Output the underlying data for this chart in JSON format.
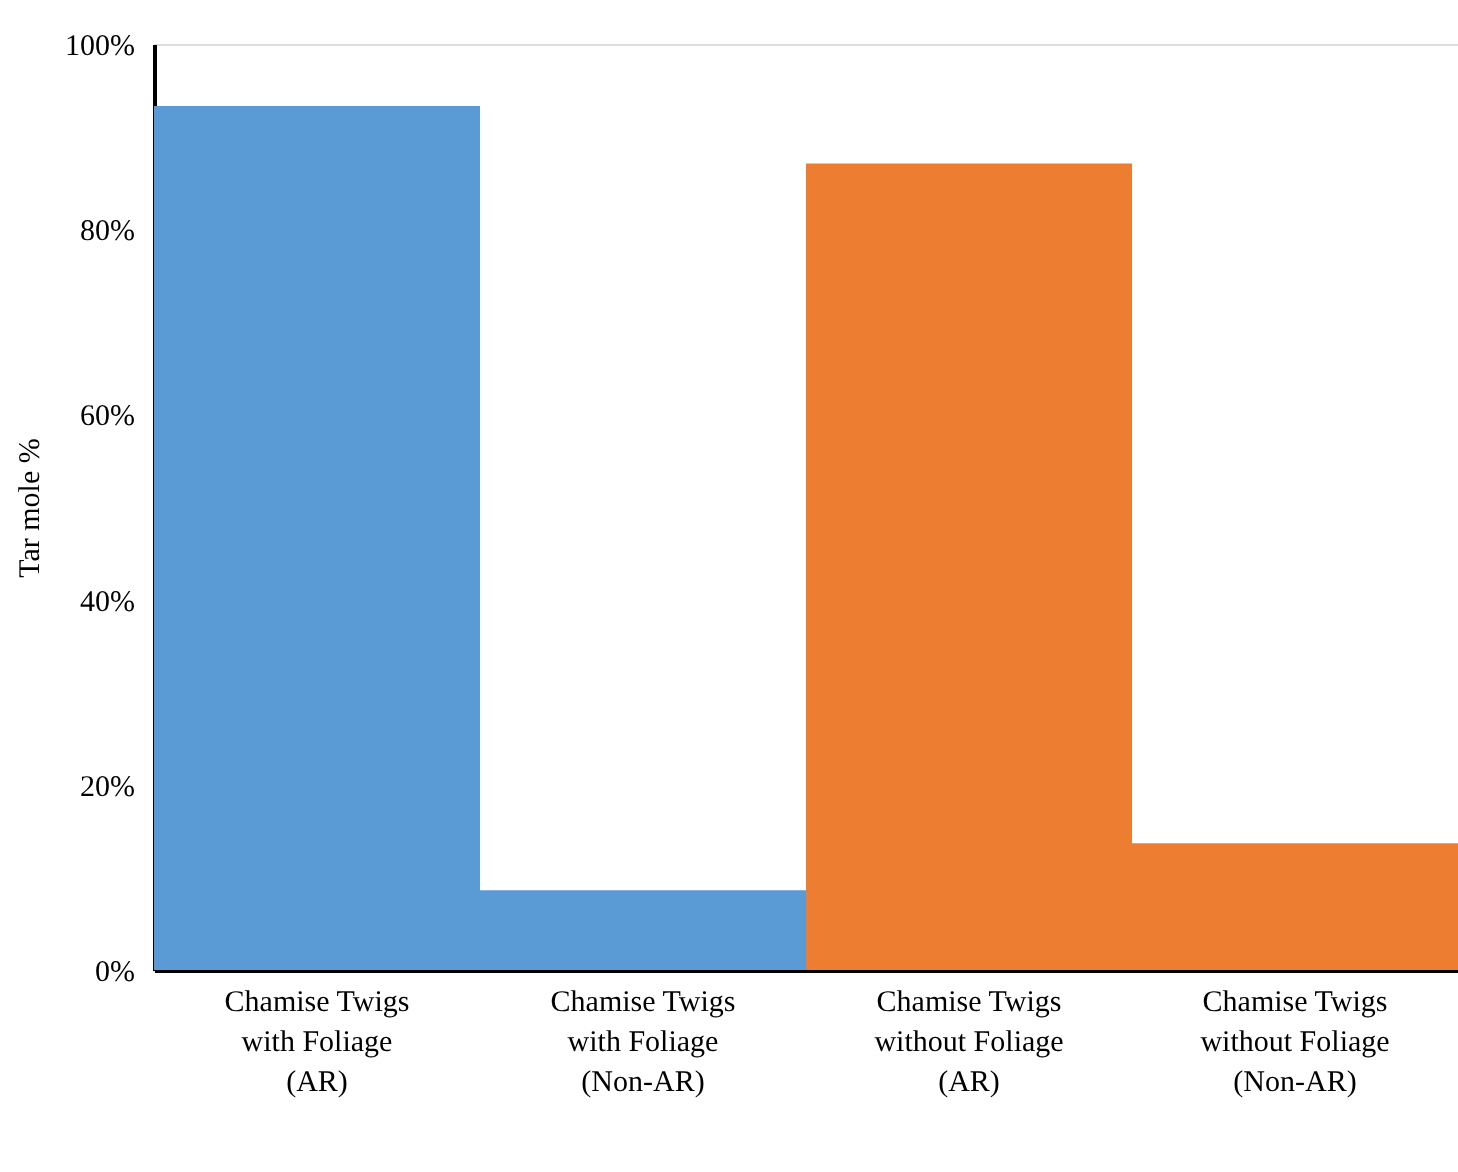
{
  "chart_data": {
    "type": "bar",
    "ylabel": "Tar mole %",
    "categories": [
      "Chamise Twigs with Foliage (AR)",
      "Chamise Twigs with Foliage (Non-AR)",
      "Chamise Twigs without Foliage (AR)",
      "Chamise Twigs without Foliage (Non-AR)"
    ],
    "values": [
      93.3,
      8.6,
      87.1,
      13.7
    ],
    "colors": [
      "#5b9bd5",
      "#5b9bd5",
      "#ed7d31",
      "#ed7d31"
    ],
    "ylim": [
      0,
      100
    ],
    "yticks": [
      {
        "value": 0,
        "label": "0%"
      },
      {
        "value": 20,
        "label": "20%"
      },
      {
        "value": 40,
        "label": "40%"
      },
      {
        "value": 60,
        "label": "60%"
      },
      {
        "value": 80,
        "label": "80%"
      },
      {
        "value": 100,
        "label": "100%"
      }
    ],
    "grid": false
  }
}
